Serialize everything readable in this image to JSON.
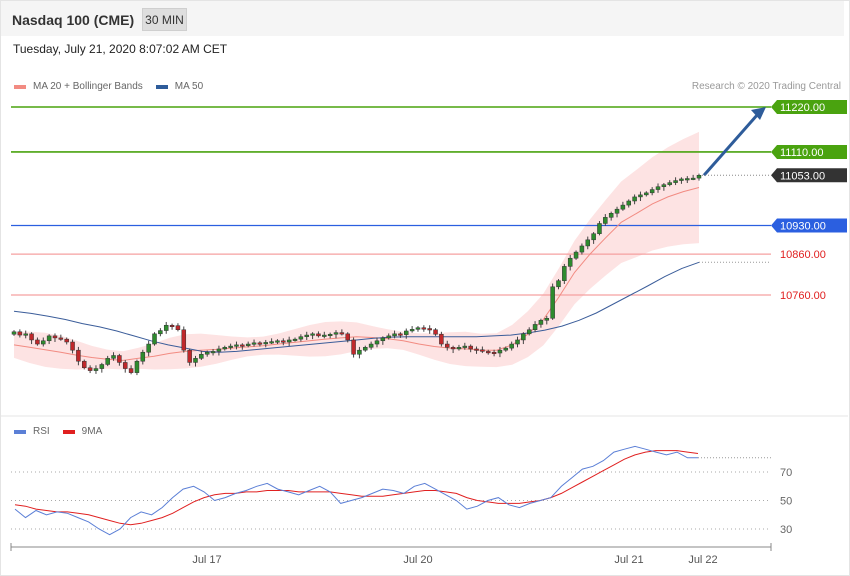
{
  "header": {
    "title": "Nasdaq 100 (CME)",
    "timeframe": "30 MIN",
    "datetime": "Tuesday, July 21, 2020 8:07:02 AM CET"
  },
  "legend": {
    "main": [
      {
        "label": "MA 20 + Bollinger Bands",
        "color": "#f28b82"
      },
      {
        "label": "MA 50",
        "color": "#2e5c9a"
      }
    ],
    "rsi": [
      {
        "label": "RSI",
        "color": "#5b7fd6"
      },
      {
        "label": "9MA",
        "color": "#e02020"
      }
    ],
    "credit": "Research © 2020 Trading Central"
  },
  "colors": {
    "bull": "#2e8b2e",
    "bear": "#c0282b",
    "target_line": "#4aa30f",
    "pivot_line": "#2b5fe0",
    "support_line": "#f5a0a0",
    "support_text": "#e02020",
    "band_fill": "#fde3e3",
    "ma20": "#f28b82",
    "ma50": "#3b5d9a",
    "price_tag": "#333333",
    "arrow": "#2e5c9a"
  },
  "chart_data": [
    {
      "type": "candlestick",
      "instrument": "Nasdaq 100 (CME)",
      "interval": "30 MIN",
      "x_labels": [
        "Jul 17",
        "Jul 20",
        "Jul 21",
        "Jul 22"
      ],
      "ylim": [
        10560,
        11260
      ],
      "levels": [
        {
          "value": 11220.0,
          "label": "11220.00",
          "kind": "resistance"
        },
        {
          "value": 11110.0,
          "label": "11110.00",
          "kind": "resistance"
        },
        {
          "value": 10930.0,
          "label": "10930.00",
          "kind": "pivot"
        },
        {
          "value": 10860.0,
          "label": "10860.00",
          "kind": "support"
        },
        {
          "value": 10760.0,
          "label": "10760.00",
          "kind": "support"
        }
      ],
      "last_price": {
        "value": 11053.0,
        "label": "11053.00"
      },
      "target_arrow": {
        "from": 11053,
        "to": 11220
      },
      "closes": [
        10670,
        10662,
        10665,
        10650,
        10640,
        10648,
        10660,
        10655,
        10652,
        10645,
        10625,
        10598,
        10582,
        10575,
        10580,
        10590,
        10605,
        10612,
        10595,
        10580,
        10570,
        10598,
        10620,
        10640,
        10665,
        10673,
        10686,
        10685,
        10675,
        10625,
        10595,
        10605,
        10615,
        10620,
        10622,
        10628,
        10632,
        10635,
        10638,
        10636,
        10640,
        10643,
        10642,
        10644,
        10646,
        10648,
        10645,
        10650,
        10652,
        10658,
        10662,
        10665,
        10660,
        10662,
        10664,
        10668,
        10665,
        10650,
        10615,
        10625,
        10632,
        10640,
        10648,
        10655,
        10660,
        10665,
        10663,
        10672,
        10676,
        10680,
        10678,
        10675,
        10664,
        10640,
        10632,
        10628,
        10632,
        10635,
        10628,
        10626,
        10622,
        10620,
        10618,
        10625,
        10630,
        10640,
        10650,
        10665,
        10675,
        10688,
        10698,
        10703,
        10780,
        10795,
        10830,
        10850,
        10865,
        10880,
        10895,
        10910,
        10935,
        10950,
        10960,
        10970,
        10980,
        10990,
        11000,
        11005,
        11010,
        11018,
        11025,
        11030,
        11035,
        11040,
        11044,
        11045,
        11046,
        11053
      ],
      "ma20": [
        10638,
        10632,
        10626,
        10620,
        10613,
        10607,
        10603,
        10600,
        10605,
        10610,
        10617,
        10622,
        10625,
        10627,
        10630,
        10633,
        10636,
        10640,
        10644,
        10648,
        10652,
        10655,
        10658,
        10656,
        10653,
        10648,
        10640,
        10634,
        10630,
        10628,
        10625,
        10625,
        10638,
        10664,
        10700,
        10755,
        10815,
        10860,
        10900,
        10938,
        10960,
        10983,
        11000,
        11013,
        11023
      ],
      "ma50": [
        10720,
        10715,
        10708,
        10700,
        10690,
        10682,
        10672,
        10660,
        10648,
        10638,
        10630,
        10622,
        10620,
        10622,
        10626,
        10630,
        10634,
        10638,
        10642,
        10646,
        10650,
        10654,
        10657,
        10658,
        10658,
        10658,
        10658,
        10658,
        10660,
        10662,
        10667,
        10674,
        10684,
        10698,
        10716,
        10738,
        10760,
        10782,
        10805,
        10825,
        10840
      ]
    },
    {
      "type": "line",
      "name": "RSI",
      "series": [
        {
          "name": "RSI",
          "values": [
            44,
            38,
            43,
            40,
            42,
            41,
            38,
            35,
            30,
            26,
            30,
            38,
            42,
            40,
            45,
            52,
            58,
            60,
            56,
            50,
            52,
            55,
            57,
            60,
            62,
            58,
            56,
            54,
            57,
            60,
            56,
            48,
            50,
            52,
            55,
            58,
            57,
            55,
            60,
            62,
            58,
            54,
            50,
            44,
            46,
            50,
            52,
            47,
            45,
            48,
            50,
            52,
            60,
            66,
            72,
            74,
            78,
            84,
            86,
            88,
            86,
            84,
            82,
            84,
            80,
            80
          ]
        },
        {
          "name": "9MA",
          "values": [
            47,
            46,
            44,
            43,
            42,
            42,
            41,
            40,
            38,
            36,
            34,
            33,
            34,
            36,
            38,
            41,
            45,
            49,
            52,
            54,
            55,
            55,
            56,
            56,
            57,
            57,
            57,
            56,
            56,
            56,
            56,
            55,
            54,
            53,
            53,
            53,
            54,
            55,
            56,
            57,
            57,
            56,
            55,
            52,
            50,
            49,
            48,
            48,
            48,
            49,
            50,
            52,
            55,
            59,
            63,
            67,
            71,
            75,
            79,
            82,
            84,
            85,
            85,
            85,
            84,
            83
          ]
        }
      ],
      "ylim": [
        15,
        95
      ],
      "ticks": [
        70,
        50,
        30
      ]
    }
  ]
}
